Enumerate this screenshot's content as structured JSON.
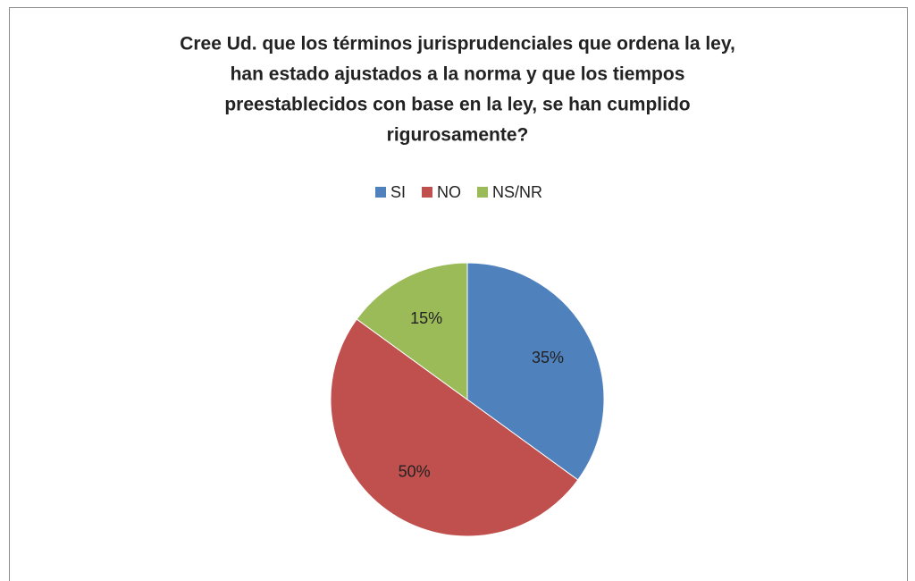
{
  "chart_data": {
    "type": "pie",
    "title": [
      "Cree Ud. que los términos jurisprudenciales que ordena la ley,",
      "han estado ajustados a la norma y que los tiempos",
      "preestablecidos con base en la ley, se han cumplido",
      "rigurosamente?"
    ],
    "categories": [
      "SI",
      "NO",
      "NS/NR"
    ],
    "values": [
      35,
      50,
      15
    ],
    "value_labels": [
      "35%",
      "50%",
      "15%"
    ],
    "colors": [
      "#4f81bd",
      "#c0504d",
      "#9bbb59"
    ],
    "legend": "top"
  }
}
